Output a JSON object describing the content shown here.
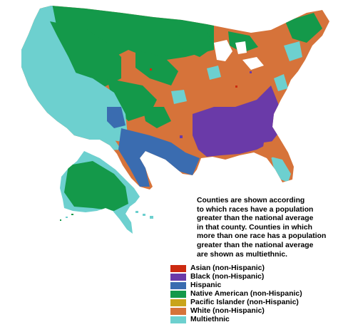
{
  "note": {
    "lines": [
      "Counties are shown according",
      "to which races have a population",
      "greater than the national average",
      "in that county.  Counties in which",
      "more than one race has a population",
      "greater than the national average",
      "are shown as multiethnic."
    ]
  },
  "legend": [
    {
      "label": "Asian (non-Hispanic)",
      "color": "#cc2a10"
    },
    {
      "label": "Black (non-Hispanic)",
      "color": "#6a3aa8"
    },
    {
      "label": "Hispanic",
      "color": "#3a6cb0"
    },
    {
      "label": "Native American (non-Hispanic)",
      "color": "#14994a"
    },
    {
      "label": "Pacific Islander (non-Hispanic)",
      "color": "#c9a41a"
    },
    {
      "label": "White (non-Hispanic)",
      "color": "#d6733a"
    },
    {
      "label": "Multiethnic",
      "color": "#6dd0cf"
    }
  ]
}
